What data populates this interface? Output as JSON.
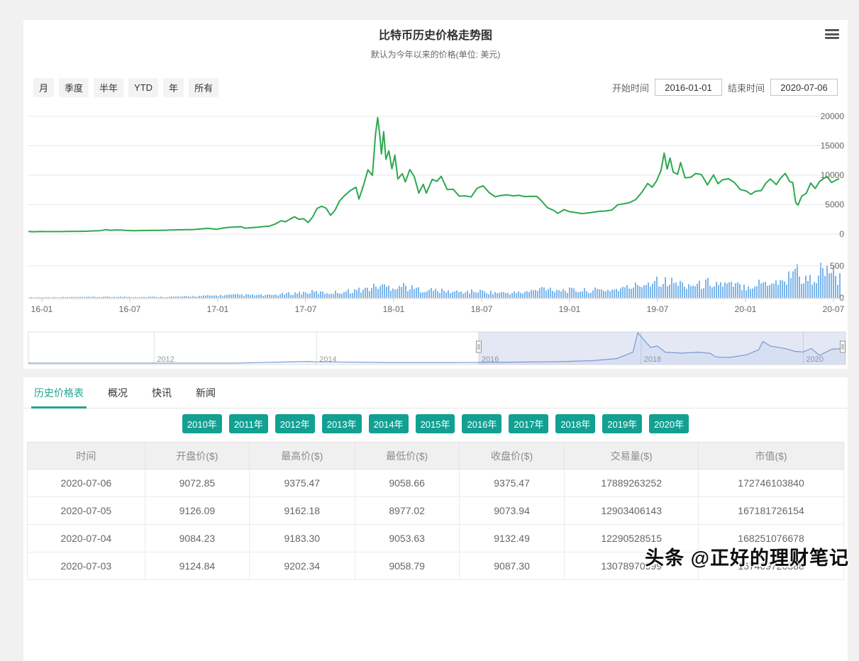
{
  "header": {
    "title": "比特币历史价格走势图",
    "subtitle": "默认为今年以来的价格(单位: 美元)",
    "menu_icon": "hamburger-menu-icon"
  },
  "range_selector": {
    "buttons": [
      "月",
      "季度",
      "半年",
      "YTD",
      "年",
      "所有"
    ],
    "start_label": "开始时间",
    "start_value": "2016-01-01",
    "end_label": "结束时间",
    "end_value": "2020-07-06"
  },
  "chart_data": {
    "type": "line+bar",
    "price_series": {
      "name": "price-usd",
      "color": "#2ca94f",
      "ylim": [
        0,
        20000
      ],
      "yticks": [
        0,
        5000,
        10000,
        15000,
        20000
      ],
      "points_month_price": [
        [
          0,
          430
        ],
        [
          0.4,
          392
        ],
        [
          0.8,
          437
        ],
        [
          1.2,
          425
        ],
        [
          1.6,
          416
        ],
        [
          2,
          418
        ],
        [
          2.4,
          430
        ],
        [
          2.8,
          448
        ],
        [
          3.2,
          455
        ],
        [
          3.6,
          470
        ],
        [
          4,
          490
        ],
        [
          4.4,
          540
        ],
        [
          4.8,
          580
        ],
        [
          5.2,
          745
        ],
        [
          5.5,
          640
        ],
        [
          5.8,
          690
        ],
        [
          6.2,
          675
        ],
        [
          6.6,
          600
        ],
        [
          7,
          580
        ],
        [
          7.4,
          590
        ],
        [
          7.8,
          605
        ],
        [
          8.2,
          615
        ],
        [
          8.6,
          630
        ],
        [
          9,
          640
        ],
        [
          9.4,
          680
        ],
        [
          9.8,
          710
        ],
        [
          10.2,
          720
        ],
        [
          10.6,
          745
        ],
        [
          11,
          760
        ],
        [
          11.4,
          840
        ],
        [
          11.8,
          935
        ],
        [
          12,
          963
        ],
        [
          12.3,
          895
        ],
        [
          12.6,
          825
        ],
        [
          13,
          1010
        ],
        [
          13.4,
          1150
        ],
        [
          13.8,
          1190
        ],
        [
          14.2,
          1255
        ],
        [
          14.5,
          985
        ],
        [
          14.9,
          1080
        ],
        [
          15.3,
          1160
        ],
        [
          15.7,
          1270
        ],
        [
          16.1,
          1340
        ],
        [
          16.5,
          1700
        ],
        [
          16.9,
          2250
        ],
        [
          17.2,
          2100
        ],
        [
          17.5,
          2550
        ],
        [
          17.8,
          2930
        ],
        [
          18.1,
          2500
        ],
        [
          18.4,
          2600
        ],
        [
          18.7,
          1960
        ],
        [
          19,
          2880
        ],
        [
          19.3,
          4350
        ],
        [
          19.6,
          4720
        ],
        [
          19.9,
          4400
        ],
        [
          20.2,
          3180
        ],
        [
          20.5,
          4050
        ],
        [
          20.8,
          5600
        ],
        [
          21.1,
          6450
        ],
        [
          21.5,
          7350
        ],
        [
          21.9,
          7950
        ],
        [
          22.1,
          5950
        ],
        [
          22.4,
          8250
        ],
        [
          22.7,
          10900
        ],
        [
          23,
          9950
        ],
        [
          23.2,
          16850
        ],
        [
          23.35,
          19800
        ],
        [
          23.5,
          16600
        ],
        [
          23.6,
          13600
        ],
        [
          23.75,
          17400
        ],
        [
          23.9,
          12700
        ],
        [
          24.1,
          14150
        ],
        [
          24.3,
          11100
        ],
        [
          24.5,
          13400
        ],
        [
          24.7,
          9350
        ],
        [
          25,
          10250
        ],
        [
          25.2,
          8850
        ],
        [
          25.5,
          10950
        ],
        [
          25.8,
          9750
        ],
        [
          26.1,
          6950
        ],
        [
          26.4,
          8450
        ],
        [
          26.6,
          6950
        ],
        [
          27,
          9300
        ],
        [
          27.3,
          8950
        ],
        [
          27.6,
          9800
        ],
        [
          28,
          7550
        ],
        [
          28.4,
          7600
        ],
        [
          28.8,
          6450
        ],
        [
          29.2,
          6500
        ],
        [
          29.6,
          6300
        ],
        [
          30,
          7800
        ],
        [
          30.4,
          8200
        ],
        [
          30.8,
          7050
        ],
        [
          31.2,
          6350
        ],
        [
          31.6,
          6550
        ],
        [
          32,
          6650
        ],
        [
          32.4,
          6500
        ],
        [
          32.8,
          6580
        ],
        [
          33.2,
          6350
        ],
        [
          33.6,
          6420
        ],
        [
          34,
          6380
        ],
        [
          34.3,
          5650
        ],
        [
          34.7,
          4480
        ],
        [
          35.1,
          4050
        ],
        [
          35.4,
          3520
        ],
        [
          35.8,
          4150
        ],
        [
          36.2,
          3780
        ],
        [
          36.6,
          3650
        ],
        [
          37,
          3480
        ],
        [
          37.4,
          3580
        ],
        [
          37.8,
          3720
        ],
        [
          38.2,
          3870
        ],
        [
          38.6,
          3920
        ],
        [
          39,
          4080
        ],
        [
          39.4,
          4980
        ],
        [
          39.8,
          5150
        ],
        [
          40.2,
          5350
        ],
        [
          40.6,
          5850
        ],
        [
          41,
          7050
        ],
        [
          41.4,
          8600
        ],
        [
          41.7,
          7950
        ],
        [
          42,
          9050
        ],
        [
          42.3,
          10850
        ],
        [
          42.5,
          13750
        ],
        [
          42.7,
          11050
        ],
        [
          42.9,
          12900
        ],
        [
          43.1,
          10550
        ],
        [
          43.4,
          10150
        ],
        [
          43.6,
          12150
        ],
        [
          43.9,
          9550
        ],
        [
          44.3,
          9650
        ],
        [
          44.6,
          10300
        ],
        [
          45,
          10100
        ],
        [
          45.4,
          8350
        ],
        [
          45.8,
          10050
        ],
        [
          46.1,
          8550
        ],
        [
          46.4,
          9200
        ],
        [
          46.8,
          9400
        ],
        [
          47.2,
          8750
        ],
        [
          47.6,
          7550
        ],
        [
          48,
          7300
        ],
        [
          48.3,
          6750
        ],
        [
          48.6,
          7250
        ],
        [
          49,
          7400
        ],
        [
          49.3,
          8650
        ],
        [
          49.6,
          9350
        ],
        [
          50,
          8400
        ],
        [
          50.3,
          9550
        ],
        [
          50.6,
          10300
        ],
        [
          50.9,
          8900
        ],
        [
          51.1,
          8750
        ],
        [
          51.3,
          5350
        ],
        [
          51.45,
          4920
        ],
        [
          51.7,
          6450
        ],
        [
          52,
          6900
        ],
        [
          52.3,
          8650
        ],
        [
          52.6,
          7750
        ],
        [
          52.9,
          8950
        ],
        [
          53.2,
          9500
        ],
        [
          53.4,
          9750
        ],
        [
          53.7,
          8750
        ],
        [
          54,
          9180
        ],
        [
          54.2,
          9375
        ]
      ]
    },
    "volume_series": {
      "name": "volume",
      "color": "#7cb5ec",
      "ylim": [
        0,
        750
      ],
      "yticks": [
        0,
        500
      ],
      "envelope_month_value": [
        [
          0,
          14
        ],
        [
          2,
          16
        ],
        [
          4,
          20
        ],
        [
          6,
          24
        ],
        [
          8,
          22
        ],
        [
          10,
          26
        ],
        [
          12,
          45
        ],
        [
          14,
          65
        ],
        [
          16,
          55
        ],
        [
          17.5,
          95
        ],
        [
          19,
          125
        ],
        [
          20,
          105
        ],
        [
          21,
          135
        ],
        [
          22.5,
          185
        ],
        [
          23.4,
          265
        ],
        [
          24,
          235
        ],
        [
          25,
          265
        ],
        [
          25.5,
          205
        ],
        [
          26,
          185
        ],
        [
          27,
          165
        ],
        [
          28,
          135
        ],
        [
          29,
          125
        ],
        [
          30,
          145
        ],
        [
          31,
          115
        ],
        [
          32,
          105
        ],
        [
          33,
          115
        ],
        [
          34,
          165
        ],
        [
          34.5,
          235
        ],
        [
          35,
          185
        ],
        [
          36,
          165
        ],
        [
          37,
          155
        ],
        [
          38,
          165
        ],
        [
          39,
          175
        ],
        [
          40,
          215
        ],
        [
          41,
          295
        ],
        [
          42,
          405
        ],
        [
          42.5,
          345
        ],
        [
          43,
          335
        ],
        [
          43.5,
          305
        ],
        [
          44,
          285
        ],
        [
          45,
          275
        ],
        [
          45.5,
          345
        ],
        [
          46,
          305
        ],
        [
          47,
          265
        ],
        [
          48,
          255
        ],
        [
          49,
          325
        ],
        [
          50,
          365
        ],
        [
          50.5,
          335
        ],
        [
          51.2,
          700
        ],
        [
          51.5,
          460
        ],
        [
          52,
          360
        ],
        [
          52.5,
          430
        ],
        [
          53,
          610
        ],
        [
          53.3,
          530
        ],
        [
          53.6,
          590
        ],
        [
          54,
          430
        ],
        [
          54.2,
          390
        ]
      ]
    },
    "x_axis": {
      "tick_labels": [
        "16-01",
        "16-07",
        "17-01",
        "17-07",
        "18-01",
        "18-07",
        "19-01",
        "19-07",
        "20-01",
        "20-07"
      ],
      "span_months": 54.2
    },
    "navigator": {
      "line_color": "#7f9fd4",
      "year_labels": [
        "2012",
        "2014",
        "2016",
        "2018",
        "2020"
      ],
      "year_start": 2010.45,
      "year_end": 2020.52,
      "selected_from_year": 2016.0,
      "selected_to_year": 2020.52,
      "points_year_price": [
        [
          2010.45,
          0
        ],
        [
          2011,
          1
        ],
        [
          2011.5,
          15
        ],
        [
          2012,
          5
        ],
        [
          2013,
          13
        ],
        [
          2013.9,
          1100
        ],
        [
          2014,
          800
        ],
        [
          2014.5,
          600
        ],
        [
          2015,
          250
        ],
        [
          2015.8,
          380
        ],
        [
          2016,
          430
        ],
        [
          2016.5,
          670
        ],
        [
          2017,
          960
        ],
        [
          2017.4,
          1600
        ],
        [
          2017.7,
          2900
        ],
        [
          2017.9,
          7000
        ],
        [
          2017.96,
          19500
        ],
        [
          2018.05,
          14000
        ],
        [
          2018.12,
          10000
        ],
        [
          2018.2,
          11000
        ],
        [
          2018.3,
          7000
        ],
        [
          2018.5,
          6400
        ],
        [
          2018.7,
          7000
        ],
        [
          2018.85,
          6300
        ],
        [
          2018.92,
          4000
        ],
        [
          2019,
          3740
        ],
        [
          2019.1,
          3700
        ],
        [
          2019.3,
          5300
        ],
        [
          2019.45,
          8560
        ],
        [
          2019.5,
          13800
        ],
        [
          2019.6,
          10800
        ],
        [
          2019.7,
          10100
        ],
        [
          2019.8,
          9000
        ],
        [
          2019.9,
          7500
        ],
        [
          2020,
          7190
        ],
        [
          2020.1,
          9350
        ],
        [
          2020.2,
          4900
        ],
        [
          2020.35,
          8900
        ],
        [
          2020.52,
          9375
        ]
      ]
    }
  },
  "tabs": [
    {
      "label": "历史价格表",
      "active": true
    },
    {
      "label": "概况",
      "active": false
    },
    {
      "label": "快讯",
      "active": false
    },
    {
      "label": "新闻",
      "active": false
    }
  ],
  "year_buttons": [
    "2010年",
    "2011年",
    "2012年",
    "2013年",
    "2014年",
    "2015年",
    "2016年",
    "2017年",
    "2018年",
    "2019年",
    "2020年"
  ],
  "table": {
    "headers": [
      "时间",
      "开盘价($)",
      "最高价($)",
      "最低价($)",
      "收盘价($)",
      "交易量($)",
      "市值($)"
    ],
    "col_widths": [
      "14.4%",
      "12.8%",
      "12.9%",
      "12.8%",
      "12.9%",
      "16.4%",
      "17.8%"
    ],
    "rows": [
      [
        "2020-07-06",
        "9072.85",
        "9375.47",
        "9058.66",
        "9375.47",
        "17889263252",
        "172746103840"
      ],
      [
        "2020-07-05",
        "9126.09",
        "9162.18",
        "8977.02",
        "9073.94",
        "12903406143",
        "167181726154"
      ],
      [
        "2020-07-04",
        "9084.23",
        "9183.30",
        "9053.63",
        "9132.49",
        "12290528515",
        "168251076678"
      ],
      [
        "2020-07-03",
        "9124.84",
        "9202.34",
        "9058.79",
        "9087.30",
        "13078970999",
        "167409720388"
      ]
    ]
  },
  "watermark": "头条 @正好的理财笔记"
}
